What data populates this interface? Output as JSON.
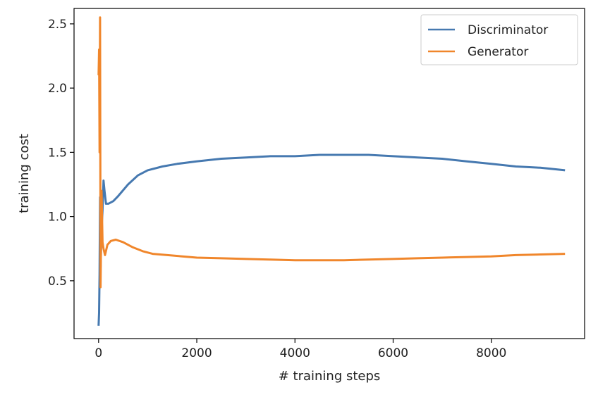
{
  "chart_data": {
    "type": "line",
    "title": "",
    "xlabel": "# training steps",
    "ylabel": "training cost",
    "xlim": [
      -500,
      9900
    ],
    "ylim": [
      0.05,
      2.62
    ],
    "xticks": [
      0,
      2000,
      4000,
      6000,
      8000
    ],
    "xtick_labels": [
      "0",
      "2000",
      "4000",
      "6000",
      "8000"
    ],
    "yticks": [
      0.5,
      1.0,
      1.5,
      2.0,
      2.5
    ],
    "ytick_labels": [
      "0.5",
      "1.0",
      "1.5",
      "2.0",
      "2.5"
    ],
    "grid": false,
    "legend_position": "top-right",
    "series": [
      {
        "name": "Discriminator",
        "color": "#4679b0",
        "x": [
          0,
          10,
          20,
          30,
          40,
          60,
          80,
          100,
          120,
          150,
          200,
          300,
          400,
          600,
          800,
          1000,
          1300,
          1600,
          2000,
          2500,
          3000,
          3500,
          4000,
          4500,
          5000,
          5500,
          6000,
          6500,
          7000,
          7500,
          8000,
          8500,
          9000,
          9500
        ],
        "values": [
          0.15,
          0.25,
          0.55,
          1.15,
          0.6,
          0.9,
          1.05,
          1.28,
          1.2,
          1.1,
          1.1,
          1.12,
          1.16,
          1.25,
          1.32,
          1.36,
          1.39,
          1.41,
          1.43,
          1.45,
          1.46,
          1.47,
          1.47,
          1.48,
          1.48,
          1.48,
          1.47,
          1.46,
          1.45,
          1.43,
          1.41,
          1.39,
          1.38,
          1.36
        ]
      },
      {
        "name": "Generator",
        "color": "#f0862b",
        "x": [
          0,
          10,
          20,
          30,
          40,
          60,
          80,
          100,
          130,
          180,
          250,
          350,
          500,
          700,
          900,
          1100,
          1400,
          1700,
          2000,
          2500,
          3000,
          3500,
          4000,
          4500,
          5000,
          5500,
          6000,
          6500,
          7000,
          7500,
          8000,
          8500,
          9000,
          9500
        ],
        "values": [
          2.1,
          2.3,
          1.5,
          2.55,
          0.45,
          1.2,
          0.8,
          0.75,
          0.7,
          0.78,
          0.81,
          0.82,
          0.8,
          0.76,
          0.73,
          0.71,
          0.7,
          0.69,
          0.68,
          0.675,
          0.67,
          0.665,
          0.66,
          0.66,
          0.66,
          0.665,
          0.67,
          0.675,
          0.68,
          0.685,
          0.69,
          0.7,
          0.705,
          0.71
        ]
      }
    ]
  }
}
